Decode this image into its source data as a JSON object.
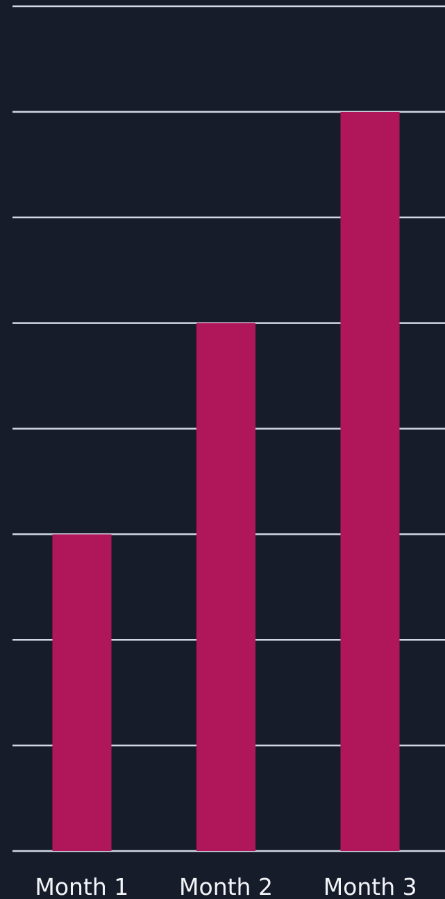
{
  "chart_data": {
    "type": "bar",
    "title": "",
    "xlabel": "",
    "ylabel": "",
    "categories": [
      "Month 1",
      "Month 2",
      "Month 3"
    ],
    "values": [
      3,
      5,
      7
    ],
    "ylim": [
      0,
      8
    ],
    "grid": true,
    "bar_color": "#b0175a",
    "grid_color": "#d3d8e6",
    "background_color": "#171c2b",
    "label_color": "#f2f4f8"
  }
}
